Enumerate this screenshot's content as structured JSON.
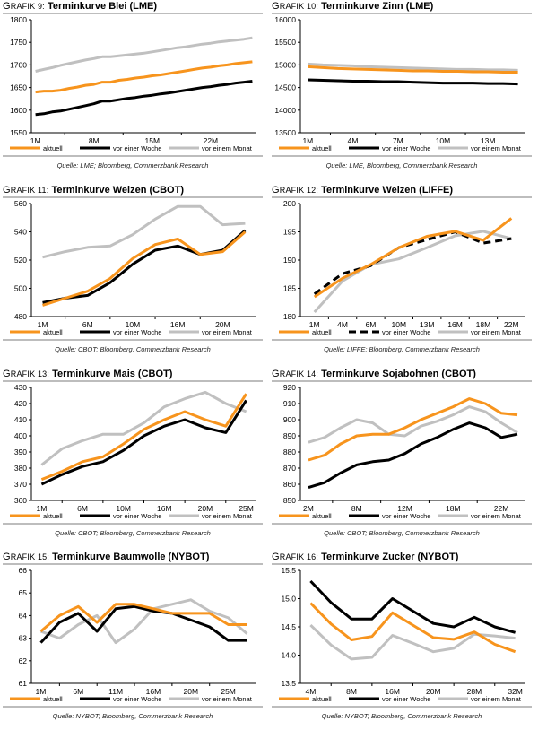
{
  "legend_labels": {
    "current": "aktuell",
    "week": "vor einer Woche",
    "month": "vor einem Monat"
  },
  "colors": {
    "current": "#f7941d",
    "week": "#000000",
    "month": "#c0c0c0"
  },
  "chart_data": [
    {
      "id": "g9",
      "type": "line",
      "title_prefix": "Grafik 9:",
      "title": "Terminkurve Blei (LME)",
      "source": "Quelle: LME; Bloomberg, Commerzbank Research",
      "xlabel": "",
      "ylabel": "",
      "ylim": [
        1550,
        1800
      ],
      "yticks": [
        1550,
        1600,
        1650,
        1700,
        1750,
        1800
      ],
      "xtick_labels": [
        "1M",
        "8M",
        "15M",
        "22M"
      ],
      "xtick_positions": [
        1,
        8,
        15,
        22
      ],
      "x": [
        1,
        2,
        3,
        4,
        5,
        6,
        7,
        8,
        9,
        10,
        11,
        12,
        13,
        14,
        15,
        16,
        17,
        18,
        19,
        20,
        21,
        22,
        23,
        24,
        25,
        26,
        27
      ],
      "x_range": [
        0.5,
        27.5
      ],
      "grid": false,
      "legend": "bottom",
      "series": [
        {
          "key": "current",
          "name": "aktuell",
          "values": [
            1640,
            1642,
            1642,
            1644,
            1648,
            1651,
            1655,
            1657,
            1662,
            1662,
            1666,
            1668,
            1671,
            1673,
            1676,
            1678,
            1681,
            1684,
            1687,
            1690,
            1693,
            1695,
            1698,
            1700,
            1703,
            1705,
            1707
          ]
        },
        {
          "key": "week",
          "name": "vor einer Woche",
          "values": [
            1590,
            1592,
            1596,
            1598,
            1602,
            1606,
            1610,
            1614,
            1620,
            1620,
            1623,
            1626,
            1628,
            1631,
            1633,
            1636,
            1638,
            1641,
            1644,
            1647,
            1650,
            1652,
            1655,
            1657,
            1660,
            1662,
            1664
          ]
        },
        {
          "key": "month",
          "name": "vor einem Monat",
          "values": [
            1686,
            1690,
            1694,
            1699,
            1703,
            1707,
            1711,
            1714,
            1718,
            1718,
            1720,
            1722,
            1724,
            1726,
            1729,
            1732,
            1735,
            1738,
            1740,
            1743,
            1746,
            1748,
            1751,
            1753,
            1755,
            1757,
            1760
          ]
        }
      ]
    },
    {
      "id": "g10",
      "type": "line",
      "title_prefix": "Grafik 10:",
      "title": "Terminkurve Zinn (LME)",
      "source": "Quelle: LME, Bloomberg, Commerzbank Research",
      "xlabel": "",
      "ylabel": "",
      "ylim": [
        13500,
        16000
      ],
      "yticks": [
        13500,
        14000,
        14500,
        15000,
        15500,
        16000
      ],
      "xtick_labels": [
        "1M",
        "4M",
        "7M",
        "10M",
        "13M"
      ],
      "xtick_positions": [
        1,
        4,
        7,
        10,
        13
      ],
      "x": [
        1,
        2,
        3,
        4,
        5,
        6,
        7,
        8,
        9,
        10,
        11,
        12,
        13,
        14,
        15
      ],
      "x_range": [
        0.5,
        15.5
      ],
      "grid": false,
      "legend": "bottom",
      "series": [
        {
          "key": "current",
          "name": "aktuell",
          "values": [
            14960,
            14940,
            14920,
            14910,
            14900,
            14890,
            14880,
            14870,
            14870,
            14860,
            14860,
            14850,
            14850,
            14840,
            14840
          ]
        },
        {
          "key": "week",
          "name": "vor einer Woche",
          "values": [
            14670,
            14660,
            14650,
            14640,
            14640,
            14630,
            14630,
            14620,
            14610,
            14600,
            14600,
            14600,
            14590,
            14590,
            14580
          ]
        },
        {
          "key": "month",
          "name": "vor einem Monat",
          "values": [
            15020,
            15000,
            14990,
            14980,
            14960,
            14950,
            14940,
            14930,
            14920,
            14910,
            14900,
            14900,
            14890,
            14890,
            14880
          ]
        }
      ]
    },
    {
      "id": "g11",
      "type": "line",
      "title_prefix": "Grafik 11:",
      "title": "Terminkurve Weizen (CBOT)",
      "source": "Quelle: CBOT; Bloomberg, Commerzbank Research",
      "xlabel": "",
      "ylabel": "",
      "ylim": [
        480,
        560
      ],
      "yticks": [
        480,
        500,
        520,
        540,
        560
      ],
      "xtick_labels": [
        "1M",
        "6M",
        "10M",
        "16M",
        "20M"
      ],
      "xtick_positions": [
        0,
        2,
        4,
        6,
        8
      ],
      "x": [
        0,
        1,
        2,
        3,
        4,
        5,
        6,
        7,
        8,
        9
      ],
      "x_range": [
        -0.5,
        9.5
      ],
      "grid": false,
      "legend": "bottom",
      "series": [
        {
          "key": "current",
          "name": "aktuell",
          "values": [
            488,
            493,
            498,
            507,
            521,
            531,
            535,
            524,
            526,
            540
          ]
        },
        {
          "key": "week",
          "name": "vor einer Woche",
          "values": [
            490,
            493,
            495,
            504,
            517,
            527,
            530,
            524,
            527,
            541
          ]
        },
        {
          "key": "month",
          "name": "vor einem Monat",
          "values": [
            522,
            526,
            529,
            530,
            538,
            549,
            558,
            558,
            545,
            546
          ]
        }
      ]
    },
    {
      "id": "g12",
      "type": "line",
      "title_prefix": "Grafik 12:",
      "title": "Terminkurve Weizen (LIFFE)",
      "source": "Quelle: LIFFE; Bloomberg, Commerzbank Research",
      "xlabel": "",
      "ylabel": "",
      "ylim": [
        180,
        200
      ],
      "yticks": [
        180,
        185,
        190,
        195,
        200
      ],
      "xtick_labels": [
        "1M",
        "4M",
        "6M",
        "10M",
        "13M",
        "16M",
        "18M",
        "22M"
      ],
      "xtick_positions": [
        0,
        1,
        2,
        3,
        4,
        5,
        6,
        7
      ],
      "x": [
        0,
        1,
        2,
        3,
        4,
        5,
        6,
        7
      ],
      "x_range": [
        -0.5,
        7.5
      ],
      "grid": false,
      "legend": "bottom",
      "series": [
        {
          "key": "current",
          "name": "aktuell",
          "values": [
            183.5,
            186.8,
            189.2,
            192.2,
            194.2,
            195.1,
            193.5,
            197.4
          ],
          "dash": false
        },
        {
          "key": "week",
          "name": "vor einer Woche",
          "values": [
            184.0,
            187.6,
            189.0,
            192.2,
            193.6,
            195.0,
            193.0,
            193.8
          ],
          "dash": true
        },
        {
          "key": "month",
          "name": "vor einem Monat",
          "values": [
            180.8,
            186.3,
            189.2,
            190.2,
            192.2,
            194.3,
            195.1,
            193.8
          ],
          "dash": false
        }
      ]
    },
    {
      "id": "g13",
      "type": "line",
      "title_prefix": "Grafik 13:",
      "title": "Terminkurve Mais (CBOT)",
      "source": "Quelle: CBOT; Bloomberg, Commerzbank Research",
      "xlabel": "",
      "ylabel": "",
      "ylim": [
        360,
        430
      ],
      "yticks": [
        360,
        370,
        380,
        390,
        400,
        410,
        420,
        430
      ],
      "xtick_labels": [
        "1M",
        "6M",
        "10M",
        "16M",
        "20M",
        "25M"
      ],
      "xtick_positions": [
        0,
        2,
        4,
        6,
        8,
        10
      ],
      "x": [
        0,
        1,
        2,
        3,
        4,
        5,
        6,
        7,
        8,
        9,
        10
      ],
      "x_range": [
        -0.5,
        10.5
      ],
      "grid": false,
      "legend": "bottom",
      "series": [
        {
          "key": "current",
          "name": "aktuell",
          "values": [
            373,
            378,
            384,
            387,
            395,
            404,
            410,
            415,
            410,
            406,
            426
          ]
        },
        {
          "key": "week",
          "name": "vor einer Woche",
          "values": [
            370,
            376,
            381,
            384,
            391,
            400,
            406,
            410,
            405,
            402,
            422
          ]
        },
        {
          "key": "month",
          "name": "vor einem Monat",
          "values": [
            382,
            392,
            397,
            401,
            401,
            408,
            418,
            423,
            427,
            420,
            415
          ]
        }
      ]
    },
    {
      "id": "g14",
      "type": "line",
      "title_prefix": "Grafik 14:",
      "title": "Terminkurve Sojabohnen (CBOT)",
      "source": "Quelle: CBOT; Bloomberg, Commerzbank Research",
      "xlabel": "",
      "ylabel": "",
      "ylim": [
        850,
        920
      ],
      "yticks": [
        850,
        860,
        870,
        880,
        890,
        900,
        910,
        920
      ],
      "xtick_labels": [
        "2M",
        "8M",
        "12M",
        "18M",
        "22M"
      ],
      "xtick_positions": [
        0,
        3,
        6,
        9,
        12
      ],
      "x": [
        0,
        1,
        2,
        3,
        4,
        5,
        6,
        7,
        8,
        9,
        10,
        11,
        12,
        13
      ],
      "x_range": [
        -0.5,
        13.5
      ],
      "grid": false,
      "legend": "bottom",
      "series": [
        {
          "key": "current",
          "name": "aktuell",
          "values": [
            875,
            878,
            885,
            890,
            891,
            891,
            895,
            900,
            904,
            908,
            913,
            910,
            904,
            903
          ]
        },
        {
          "key": "week",
          "name": "vor einer Woche",
          "values": [
            858,
            861,
            867,
            872,
            874,
            875,
            879,
            885,
            889,
            894,
            898,
            895,
            889,
            891
          ]
        },
        {
          "key": "month",
          "name": "vor einem Monat",
          "values": [
            886,
            889,
            895,
            900,
            898,
            891,
            890,
            896,
            899,
            903,
            908,
            905,
            898,
            892
          ]
        }
      ]
    },
    {
      "id": "g15",
      "type": "line",
      "title_prefix": "Grafik 15:",
      "title": "Terminkurve Baumwolle (NYBOT)",
      "source": "Quelle: NYBOT; Bloomberg, Commerzbank Research",
      "xlabel": "",
      "ylabel": "",
      "ylim": [
        61,
        66
      ],
      "yticks": [
        61,
        62,
        63,
        64,
        65,
        66
      ],
      "xtick_labels": [
        "1M",
        "6M",
        "11M",
        "16M",
        "20M",
        "25M"
      ],
      "xtick_positions": [
        0,
        2,
        4,
        6,
        8,
        10
      ],
      "x": [
        0,
        1,
        2,
        3,
        4,
        5,
        6,
        7,
        8,
        9,
        10,
        11
      ],
      "x_range": [
        -0.5,
        11.5
      ],
      "grid": false,
      "legend": "bottom",
      "series": [
        {
          "key": "current",
          "name": "aktuell",
          "values": [
            63.3,
            64.0,
            64.4,
            63.7,
            64.5,
            64.5,
            64.3,
            64.1,
            64.1,
            64.1,
            63.6,
            63.6
          ]
        },
        {
          "key": "week",
          "name": "vor einer Woche",
          "values": [
            62.8,
            63.7,
            64.1,
            63.3,
            64.3,
            64.4,
            64.2,
            64.1,
            63.8,
            63.5,
            62.9,
            62.9
          ]
        },
        {
          "key": "month",
          "name": "vor einem Monat",
          "values": [
            63.3,
            63.0,
            63.6,
            64.0,
            62.8,
            63.4,
            64.3,
            64.5,
            64.7,
            64.2,
            63.9,
            63.2
          ]
        }
      ]
    },
    {
      "id": "g16",
      "type": "line",
      "title_prefix": "Grafik 16:",
      "title": "Terminkurve Zucker (NYBOT)",
      "source": "Quelle: NYBOT; Bloomberg, Commerzbank Research",
      "xlabel": "",
      "ylabel": "",
      "ylim": [
        13.5,
        15.5
      ],
      "yticks": [
        13.5,
        14.0,
        14.5,
        15.0,
        15.5
      ],
      "ytick_decimals": 1,
      "xtick_labels": [
        "4M",
        "8M",
        "16M",
        "20M",
        "28M",
        "32M"
      ],
      "xtick_positions": [
        0,
        2,
        4,
        6,
        8,
        10
      ],
      "x": [
        0,
        1,
        2,
        3,
        4,
        5,
        6,
        7,
        8,
        9,
        10
      ],
      "x_range": [
        -0.5,
        10.5
      ],
      "grid": false,
      "legend": "bottom",
      "series": [
        {
          "key": "current",
          "name": "aktuell",
          "values": [
            14.92,
            14.55,
            14.27,
            14.33,
            14.75,
            14.53,
            14.31,
            14.28,
            14.41,
            14.19,
            14.06
          ]
        },
        {
          "key": "week",
          "name": "vor einer Woche",
          "values": [
            15.31,
            14.93,
            14.64,
            14.64,
            15.0,
            14.78,
            14.56,
            14.5,
            14.67,
            14.5,
            14.4
          ]
        },
        {
          "key": "month",
          "name": "vor einem Monat",
          "values": [
            14.53,
            14.18,
            13.93,
            13.96,
            14.35,
            14.21,
            14.06,
            14.12,
            14.37,
            14.34,
            14.3
          ]
        }
      ]
    }
  ]
}
